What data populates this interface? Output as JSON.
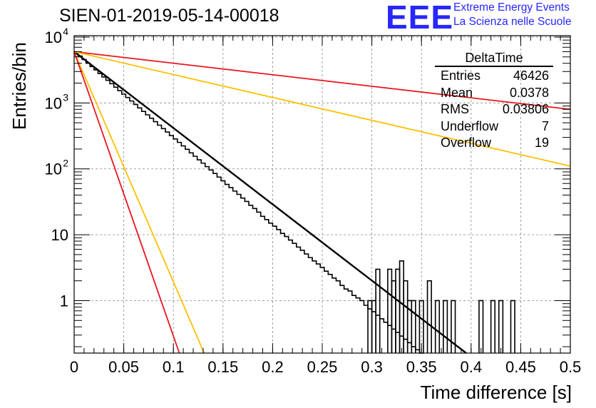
{
  "title": "SIEN-01-2019-05-14-00018",
  "logo": {
    "text": "EEE",
    "line1": "Extreme Energy Events",
    "line2": "La Scienza nelle Scuole"
  },
  "stats": {
    "name": "DeltaTime",
    "rows": [
      {
        "label": "Entries",
        "value": "46426"
      },
      {
        "label": "Mean",
        "value": "0.0378"
      },
      {
        "label": "RMS",
        "value": "0.03806"
      },
      {
        "label": "Underflow",
        "value": "7"
      },
      {
        "label": "Overflow",
        "value": "19"
      }
    ]
  },
  "colors": {
    "histogram": "#000000",
    "fit": "#000000",
    "red": "#e8151d",
    "orange": "#ffc000",
    "grid": "#888888"
  },
  "chart_data": {
    "type": "line",
    "xlabel": "Time difference [s]",
    "ylabel": "Entries/bin",
    "xlim": [
      0,
      0.5
    ],
    "ylim": [
      0.16,
      10500
    ],
    "yscale": "log",
    "grid": true,
    "x_ticks": [
      "0",
      "0.05",
      "0.1",
      "0.15",
      "0.2",
      "0.25",
      "0.3",
      "0.35",
      "0.4",
      "0.45",
      "0.5"
    ],
    "y_ticks": [
      {
        "value": 1,
        "label": "1"
      },
      {
        "value": 10,
        "label": "10"
      },
      {
        "value": 100,
        "label": "10",
        "exp": "2"
      },
      {
        "value": 1000,
        "label": "10",
        "exp": "3"
      },
      {
        "value": 10000,
        "label": "10",
        "exp": "4"
      }
    ],
    "histogram": {
      "bin_width": 0.004,
      "edges_start": 0,
      "counts": [
        5800,
        5150,
        4560,
        4010,
        3570,
        3180,
        2800,
        2480,
        2210,
        1960,
        1730,
        1540,
        1360,
        1210,
        1070,
        950,
        840,
        745,
        660,
        585,
        520,
        460,
        408,
        362,
        320,
        284,
        252,
        223,
        198,
        175,
        155,
        137,
        122,
        108,
        96,
        85,
        75,
        66,
        58,
        52,
        46,
        41,
        36,
        32,
        28,
        25,
        22,
        19,
        17,
        15,
        13.5,
        12,
        10.5,
        9.4,
        8.3,
        7.4,
        6.5,
        5.8,
        5.1,
        4.5,
        4,
        3.6,
        3.2,
        2.8,
        2.5,
        2.2,
        2,
        1.7,
        1.5,
        1.4,
        1.2,
        1.1,
        1,
        0.85,
        0.75,
        0.68,
        0.6,
        0.53,
        0.47,
        0.42,
        0.37,
        0.33,
        0.29,
        0.26,
        0.23,
        0.2,
        0.18,
        0.16
      ],
      "sparse_bins": [
        {
          "x": 0.296,
          "count": 1
        },
        {
          "x": 0.3,
          "count": 1
        },
        {
          "x": 0.304,
          "count": 3
        },
        {
          "x": 0.316,
          "count": 3
        },
        {
          "x": 0.32,
          "count": 2
        },
        {
          "x": 0.324,
          "count": 3
        },
        {
          "x": 0.328,
          "count": 4
        },
        {
          "x": 0.332,
          "count": 2
        },
        {
          "x": 0.336,
          "count": 1
        },
        {
          "x": 0.34,
          "count": 1
        },
        {
          "x": 0.348,
          "count": 1
        },
        {
          "x": 0.356,
          "count": 2
        },
        {
          "x": 0.364,
          "count": 1
        },
        {
          "x": 0.372,
          "count": 1
        },
        {
          "x": 0.38,
          "count": 1
        },
        {
          "x": 0.408,
          "count": 1
        },
        {
          "x": 0.42,
          "count": 1
        },
        {
          "x": 0.428,
          "count": 1
        },
        {
          "x": 0.44,
          "count": 1
        }
      ]
    },
    "series": [
      {
        "color": "#000000",
        "y0": 6000,
        "x": [
          0,
          0.395
        ],
        "y": [
          6000,
          0.16
        ]
      },
      {
        "color": "#e8151d",
        "y0": 6000,
        "x": [
          0,
          0.5
        ],
        "y": [
          6000,
          800
        ]
      },
      {
        "color": "#ffc000",
        "y0": 6000,
        "x": [
          0,
          0.5
        ],
        "y": [
          6000,
          110
        ]
      },
      {
        "color": "#ffc000",
        "y0": 6000,
        "x": [
          0,
          0.131
        ],
        "y": [
          6000,
          0.16
        ]
      },
      {
        "color": "#e8151d",
        "y0": 6000,
        "x": [
          0,
          0.106
        ],
        "y": [
          6000,
          0.16
        ]
      }
    ]
  }
}
